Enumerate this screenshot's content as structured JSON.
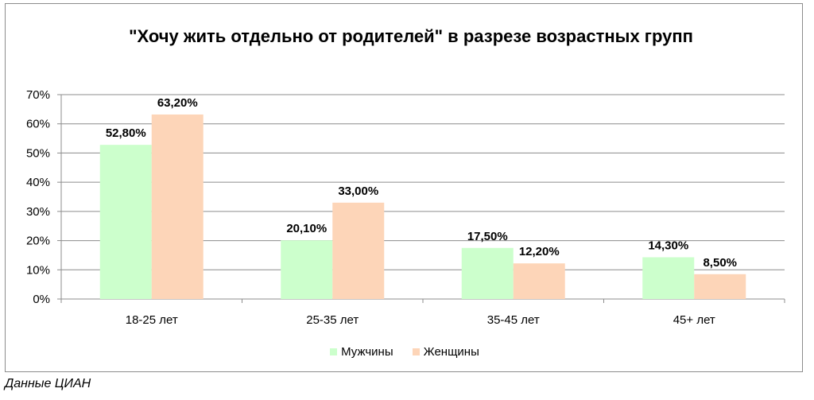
{
  "source_note": "Данные ЦИАН",
  "chart_data": {
    "type": "bar",
    "title": "\"Хочу жить отдельно от родителей\" в разрезе возрастных групп",
    "categories": [
      "18-25 лет",
      "25-35 лет",
      "35-45 лет",
      "45+ лет"
    ],
    "series": [
      {
        "name": "Мужчины",
        "values": [
          52.8,
          20.1,
          17.5,
          14.3
        ],
        "labels": [
          "52,80%",
          "20,10%",
          "17,50%",
          "14,30%"
        ],
        "color": "#ccffcc"
      },
      {
        "name": "Женщины",
        "values": [
          63.2,
          33.0,
          12.2,
          8.5
        ],
        "labels": [
          "63,20%",
          "33,00%",
          "12,20%",
          "8,50%"
        ],
        "color": "#fdd5b8"
      }
    ],
    "y_ticks": [
      "0%",
      "10%",
      "20%",
      "30%",
      "40%",
      "50%",
      "60%",
      "70%"
    ],
    "ylim": [
      0,
      70
    ],
    "grid": true,
    "legend_position": "bottom"
  }
}
